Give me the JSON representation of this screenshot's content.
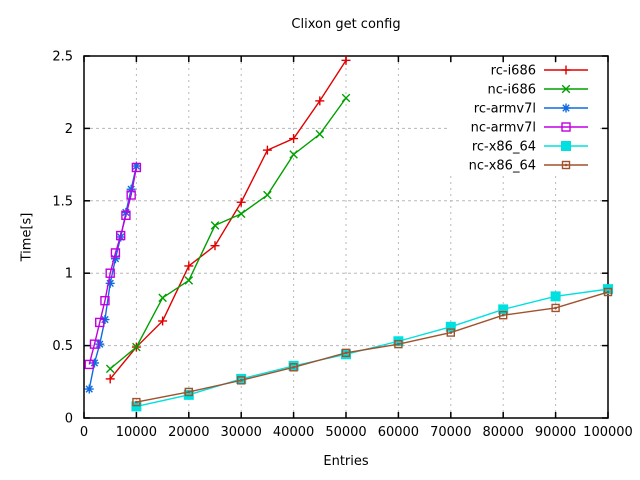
{
  "window": {
    "background": "#ffffff"
  },
  "chart_data": {
    "type": "line",
    "title": "Clixon get config",
    "xlabel": "Entries",
    "ylabel": "Time[s]",
    "xlim": [
      0,
      100000
    ],
    "ylim": [
      0,
      2.5
    ],
    "xticks": [
      0,
      10000,
      20000,
      30000,
      40000,
      50000,
      60000,
      70000,
      80000,
      90000,
      100000
    ],
    "yticks": [
      0,
      0.5,
      1,
      1.5,
      2,
      2.5
    ],
    "grid": true,
    "legend_position": "top-right-inside",
    "series": [
      {
        "name": "rc-i686",
        "color": "#e10000",
        "marker": "plus",
        "x": [
          5000,
          10000,
          15000,
          20000,
          25000,
          30000,
          35000,
          40000,
          45000,
          50000
        ],
        "y": [
          0.27,
          0.49,
          0.67,
          1.05,
          1.19,
          1.49,
          1.85,
          1.93,
          2.19,
          2.47
        ]
      },
      {
        "name": "nc-i686",
        "color": "#00a000",
        "marker": "cross",
        "x": [
          5000,
          10000,
          15000,
          20000,
          25000,
          30000,
          35000,
          40000,
          45000,
          50000
        ],
        "y": [
          0.34,
          0.49,
          0.83,
          0.95,
          1.33,
          1.41,
          1.54,
          1.82,
          1.96,
          2.21
        ]
      },
      {
        "name": "rc-armv7l",
        "color": "#0e6ae0",
        "marker": "asterisk",
        "x": [
          1000,
          2000,
          3000,
          4000,
          5000,
          6000,
          7000,
          8000,
          9000,
          10000
        ],
        "y": [
          0.2,
          0.38,
          0.51,
          0.68,
          0.93,
          1.1,
          1.25,
          1.42,
          1.58,
          1.74
        ]
      },
      {
        "name": "nc-armv7l",
        "color": "#c000e0",
        "marker": "open-square",
        "x": [
          1000,
          2000,
          3000,
          4000,
          5000,
          6000,
          7000,
          8000,
          9000,
          10000
        ],
        "y": [
          0.37,
          0.51,
          0.66,
          0.81,
          1.0,
          1.14,
          1.26,
          1.4,
          1.54,
          1.73
        ]
      },
      {
        "name": "rc-x86_64",
        "color": "#00e0e0",
        "marker": "filled-square",
        "x": [
          10000,
          20000,
          30000,
          40000,
          50000,
          60000,
          70000,
          80000,
          90000,
          100000
        ],
        "y": [
          0.08,
          0.16,
          0.27,
          0.36,
          0.44,
          0.53,
          0.63,
          0.75,
          0.84,
          0.89
        ]
      },
      {
        "name": "nc-x86_64",
        "color": "#a0522d",
        "marker": "open-square-dot",
        "x": [
          10000,
          20000,
          30000,
          40000,
          50000,
          60000,
          70000,
          80000,
          90000,
          100000
        ],
        "y": [
          0.11,
          0.18,
          0.26,
          0.35,
          0.45,
          0.51,
          0.59,
          0.71,
          0.76,
          0.87
        ]
      }
    ]
  },
  "colors": {
    "axis": "#000000",
    "grid": "#b8b8b8",
    "text": "#000000",
    "background": "#ffffff"
  }
}
